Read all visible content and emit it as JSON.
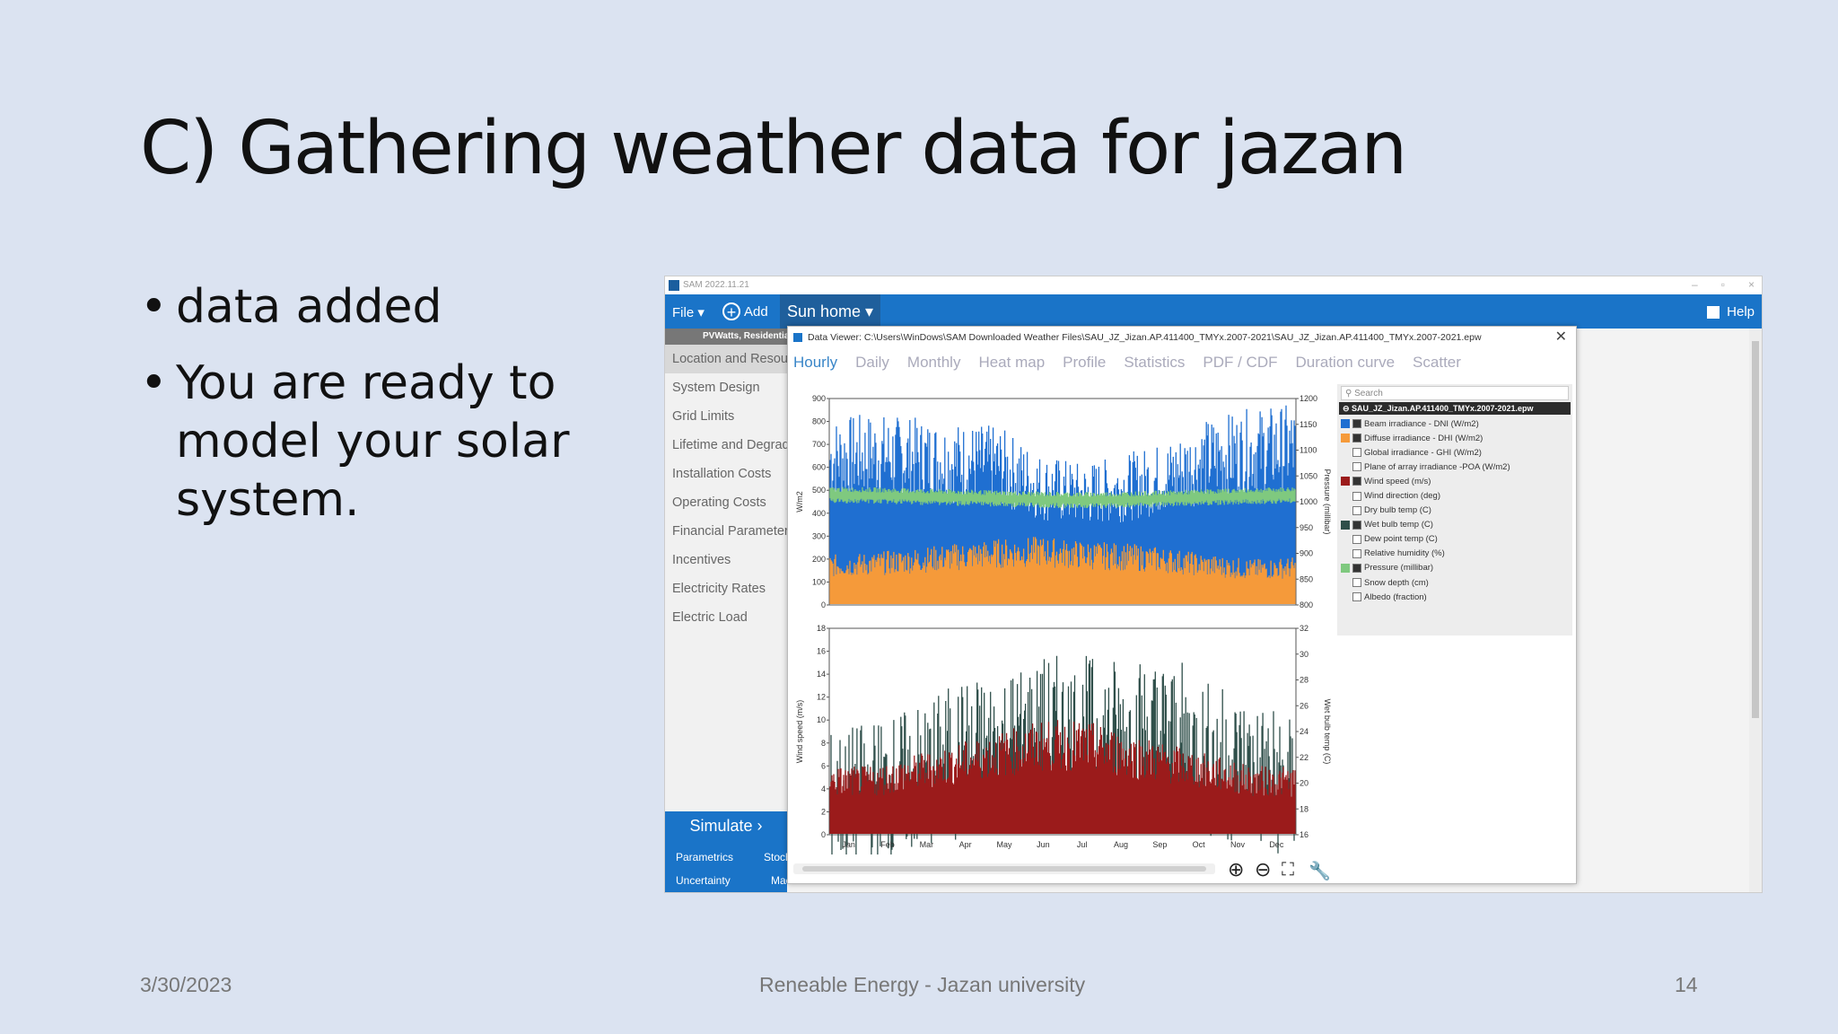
{
  "slide": {
    "title": "C) Gathering weather data for jazan",
    "bullets": [
      "data added",
      "You are ready to model your solar system."
    ],
    "footer": {
      "date": "3/30/2023",
      "center": "Reneable Energy - Jazan university",
      "page": "14"
    }
  },
  "app": {
    "window_title": "SAM 2022.11.21",
    "menu": {
      "file": "File ▾",
      "add": "Add",
      "case_tab": "Sun home ▾",
      "help": "Help"
    },
    "sidebar": {
      "config": "PVWatts, Residential",
      "items": [
        "Location and Resource",
        "System Design",
        "Grid Limits",
        "Lifetime and Degradation",
        "Installation Costs",
        "Operating Costs",
        "Financial Parameters",
        "Incentives",
        "Electricity Rates",
        "Electric Load"
      ],
      "simulate": "Simulate ›",
      "parametrics": "Parametrics",
      "stochastic": "Stochastic",
      "uncertainty": "Uncertainty",
      "macros": "Macros"
    }
  },
  "data_viewer": {
    "title": "Data Viewer: C:\\Users\\WinDows\\SAM Downloaded Weather Files\\SAU_JZ_Jizan.AP.411400_TMYx.2007-2021\\SAU_JZ_Jizan.AP.411400_TMYx.2007-2021.epw",
    "close": "✕",
    "tabs": [
      "Hourly",
      "Daily",
      "Monthly",
      "Heat map",
      "Profile",
      "Statistics",
      "PDF / CDF",
      "Duration curve",
      "Scatter"
    ],
    "search_placeholder": "Search",
    "file_name": "SAU_JZ_Jizan.AP.411400_TMYx.2007-2021.epw",
    "variables": [
      {
        "label": "Beam irradiance - DNI (W/m2)",
        "checked": true,
        "color": "#1f6fd1"
      },
      {
        "label": "Diffuse irradiance - DHI (W/m2)",
        "checked": true,
        "color": "#f59a3a"
      },
      {
        "label": "Global irradiance - GHI (W/m2)",
        "checked": false,
        "color": ""
      },
      {
        "label": "Plane of array irradiance -POA (W/m2)",
        "checked": false,
        "color": ""
      },
      {
        "label": "Wind speed (m/s)",
        "checked": true,
        "color": "#9b1b1b"
      },
      {
        "label": "Wind direction (deg)",
        "checked": false,
        "color": ""
      },
      {
        "label": "Dry bulb temp (C)",
        "checked": false,
        "color": ""
      },
      {
        "label": "Wet bulb temp (C)",
        "checked": true,
        "color": "#2f4f4a"
      },
      {
        "label": "Dew point temp (C)",
        "checked": false,
        "color": ""
      },
      {
        "label": "Relative humidity (%)",
        "checked": false,
        "color": ""
      },
      {
        "label": "Pressure (millibar)",
        "checked": true,
        "color": "#7fc97f"
      },
      {
        "label": "Snow depth (cm)",
        "checked": false,
        "color": ""
      },
      {
        "label": "Albedo (fraction)",
        "checked": false,
        "color": ""
      }
    ],
    "toolbar_icons": [
      "zoom-in-icon",
      "zoom-out-icon",
      "fit-icon",
      "wrench-icon"
    ]
  },
  "chart_data": [
    {
      "type": "area",
      "months": [
        "Jan",
        "Feb",
        "Mar",
        "Apr",
        "May",
        "Jun",
        "Jul",
        "Aug",
        "Sep",
        "Oct",
        "Nov",
        "Dec"
      ],
      "ylabel": "W/m2",
      "y2label": "Pressure (millibar)",
      "ylim": [
        0,
        900
      ],
      "y2lim": [
        800,
        1200
      ],
      "yticks": [
        0,
        100,
        200,
        300,
        400,
        500,
        600,
        700,
        800,
        900
      ],
      "y2ticks": [
        800,
        850,
        900,
        950,
        1000,
        1050,
        1100,
        1150,
        1200
      ],
      "series": [
        {
          "name": "Beam irradiance - DNI (W/m2)",
          "axis": "left",
          "color": "#1f6fd1",
          "monthly_peak": [
            820,
            840,
            820,
            800,
            780,
            660,
            620,
            660,
            720,
            820,
            860,
            880
          ]
        },
        {
          "name": "Diffuse irradiance - DHI (W/m2)",
          "axis": "left",
          "color": "#f59a3a",
          "monthly_peak": [
            220,
            230,
            250,
            270,
            290,
            300,
            280,
            270,
            250,
            220,
            200,
            210
          ]
        },
        {
          "name": "Pressure (millibar)",
          "axis": "right",
          "color": "#7fc97f",
          "monthly_mean": [
            1013,
            1012,
            1010,
            1008,
            1006,
            1004,
            1003,
            1004,
            1006,
            1009,
            1011,
            1013
          ]
        }
      ]
    },
    {
      "type": "area",
      "months": [
        "Jan",
        "Feb",
        "Mar",
        "Apr",
        "May",
        "Jun",
        "Jul",
        "Aug",
        "Sep",
        "Oct",
        "Nov",
        "Dec"
      ],
      "ylabel": "Wind speed (m/s)",
      "y2label": "Wet bulb temp (C)",
      "ylim": [
        0,
        18
      ],
      "y2lim": [
        16,
        32
      ],
      "yticks": [
        0,
        2,
        4,
        6,
        8,
        10,
        12,
        14,
        16,
        18
      ],
      "y2ticks": [
        16,
        18,
        20,
        22,
        24,
        26,
        28,
        30,
        32
      ],
      "series": [
        {
          "name": "Wet bulb temp (C)",
          "axis": "right",
          "color": "#2f4f4a",
          "monthly_max": [
            24,
            25,
            26,
            28,
            29,
            30,
            30,
            30,
            30,
            28,
            27,
            25
          ]
        },
        {
          "name": "Wind speed (m/s)",
          "axis": "left",
          "color": "#9b1b1b",
          "monthly_max": [
            6,
            6,
            7,
            8,
            9,
            10,
            10,
            9,
            8,
            7,
            6,
            6
          ]
        }
      ]
    }
  ]
}
